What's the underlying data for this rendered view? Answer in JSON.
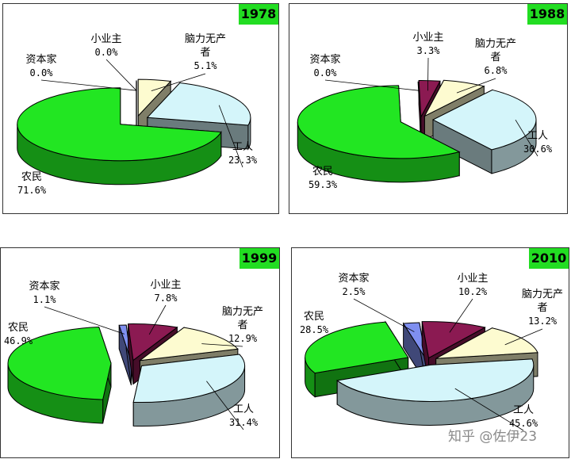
{
  "chart_data": [
    {
      "type": "pie",
      "title": "1978",
      "slices": [
        {
          "name": "小业主",
          "value": 0.0,
          "label": "0.0%"
        },
        {
          "name": "脑力无产者",
          "value": 5.1,
          "label": "5.1%"
        },
        {
          "name": "工人",
          "value": 23.3,
          "label": "23.3%"
        },
        {
          "name": "农民",
          "value": 71.6,
          "label": "71.6%"
        },
        {
          "name": "资本家",
          "value": 0.0,
          "label": "0.0%"
        }
      ]
    },
    {
      "type": "pie",
      "title": "1988",
      "slices": [
        {
          "name": "小业主",
          "value": 3.3,
          "label": "3.3%"
        },
        {
          "name": "脑力无产者",
          "value": 6.8,
          "label": "6.8%"
        },
        {
          "name": "工人",
          "value": 30.6,
          "label": "30.6%"
        },
        {
          "name": "农民",
          "value": 59.3,
          "label": "59.3%"
        },
        {
          "name": "资本家",
          "value": 0.0,
          "label": "0.0%"
        }
      ]
    },
    {
      "type": "pie",
      "title": "1999",
      "slices": [
        {
          "name": "小业主",
          "value": 7.8,
          "label": "7.8%"
        },
        {
          "name": "脑力无产者",
          "value": 12.9,
          "label": "12.9%"
        },
        {
          "name": "工人",
          "value": 31.4,
          "label": "31.4%"
        },
        {
          "name": "农民",
          "value": 46.9,
          "label": "46.9%"
        },
        {
          "name": "资本家",
          "value": 1.1,
          "label": "1.1%"
        }
      ]
    },
    {
      "type": "pie",
      "title": "2010",
      "slices": [
        {
          "name": "小业主",
          "value": 10.2,
          "label": "10.2%"
        },
        {
          "name": "脑力无产者",
          "value": 13.2,
          "label": "13.2%"
        },
        {
          "name": "工人",
          "value": 45.6,
          "label": "45.6%"
        },
        {
          "name": "农民",
          "value": 28.5,
          "label": "28.5%"
        },
        {
          "name": "资本家",
          "value": 2.5,
          "label": "2.5%"
        }
      ]
    }
  ],
  "colors": {
    "小业主": "#8b1a52",
    "脑力无产者": "#fdfbd0",
    "工人": "#d4f5fa",
    "农民": "#22e622",
    "资本家": "#7f8ff0"
  },
  "watermark": "知乎 @佐伊23"
}
